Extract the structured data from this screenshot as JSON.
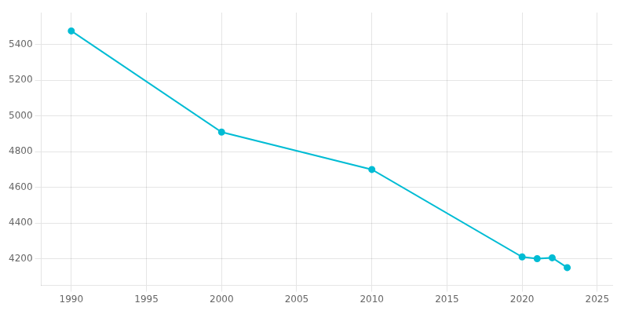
{
  "chart_data": {
    "type": "line",
    "x": [
      1990,
      2000,
      2010,
      2020,
      2021,
      2022,
      2023
    ],
    "values": [
      5477,
      4910,
      4700,
      4210,
      4200,
      4205,
      4150
    ],
    "color": "#00BCD4",
    "marker": "circle",
    "xlim": [
      1988,
      2026
    ],
    "ylim": [
      4050,
      5580
    ],
    "xticks": [
      1990,
      1995,
      2000,
      2005,
      2010,
      2015,
      2020,
      2025
    ],
    "yticks": [
      4200,
      4400,
      4600,
      4800,
      5000,
      5200,
      5400
    ],
    "grid": true
  }
}
